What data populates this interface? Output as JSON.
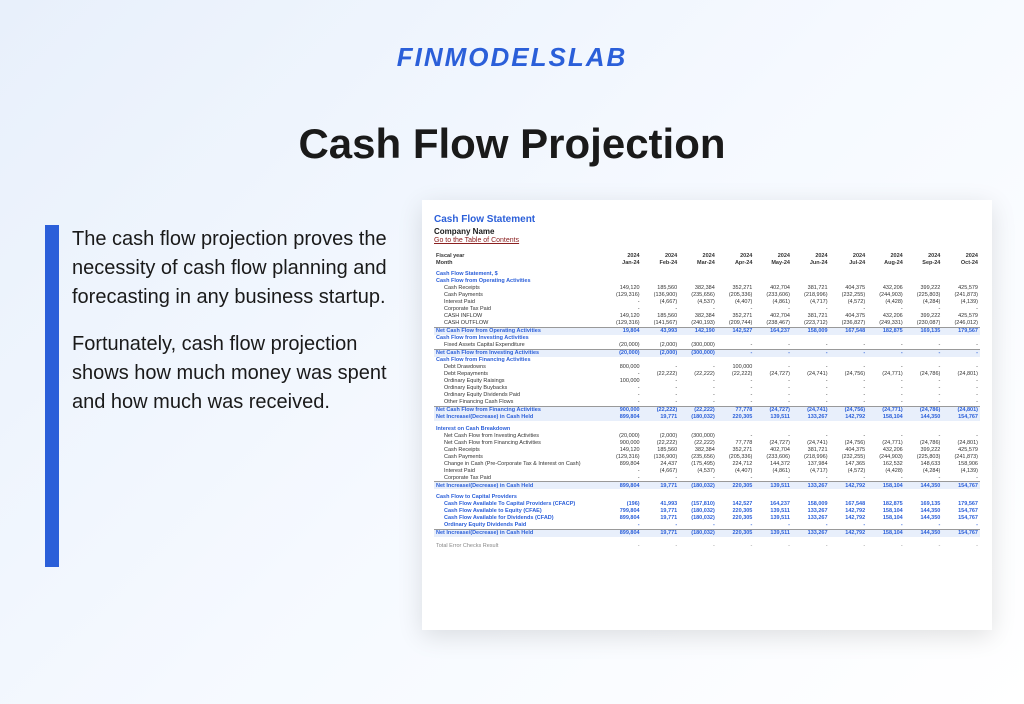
{
  "brand": "FINMODELSLAB",
  "page_title": "Cash Flow Projection",
  "paragraphs": [
    "The cash flow projection proves the necessity of cash flow planning and forecasting in any business startup.",
    "Fortunately, cash flow projection shows how much money was spent and how much was received."
  ],
  "colors": {
    "accent": "#2b5fd9",
    "bg_gradient_start": "#e8f0fb",
    "bg_gradient_end": "#ffffff",
    "text": "#1a1a1a",
    "link": "#8b2020",
    "highlight": "#e8effb"
  },
  "sheet": {
    "title": "Cash Flow Statement",
    "company": "Company Name",
    "link_text": "Go to the Table of Contents",
    "fiscal_label": "Fiscal year",
    "month_label": "Month",
    "years": [
      "2024",
      "2024",
      "2024",
      "2024",
      "2024",
      "2024",
      "2024",
      "2024",
      "2024",
      "2024"
    ],
    "months": [
      "Jan-24",
      "Feb-24",
      "Mar-24",
      "Apr-24",
      "May-24",
      "Jun-24",
      "Jul-24",
      "Aug-24",
      "Sep-24",
      "Oct-24"
    ],
    "section_statement": "Cash Flow Statement, $",
    "operating_header": "Cash Flow from Operating Activities",
    "rows_operating": [
      {
        "label": "Cash Receipts",
        "vals": [
          "149,120",
          "185,560",
          "382,384",
          "352,271",
          "402,704",
          "381,721",
          "404,375",
          "432,206",
          "399,222",
          "425,579"
        ]
      },
      {
        "label": "Cash Payments",
        "vals": [
          "(129,316)",
          "(136,900)",
          "(235,656)",
          "(205,336)",
          "(233,606)",
          "(218,996)",
          "(232,255)",
          "(244,903)",
          "(225,803)",
          "(241,873)"
        ]
      },
      {
        "label": "Interest Paid",
        "vals": [
          "-",
          "(4,667)",
          "(4,537)",
          "(4,407)",
          "(4,861)",
          "(4,717)",
          "(4,572)",
          "(4,428)",
          "(4,284)",
          "(4,139)"
        ]
      },
      {
        "label": "Corporate Tax Paid",
        "vals": [
          "-",
          "-",
          "-",
          "-",
          "-",
          "-",
          "-",
          "-",
          "-",
          "-"
        ]
      },
      {
        "label": "CASH INFLOW",
        "vals": [
          "149,120",
          "185,560",
          "382,384",
          "352,271",
          "402,704",
          "381,721",
          "404,375",
          "432,206",
          "399,222",
          "425,579"
        ]
      },
      {
        "label": "CASH OUTFLOW",
        "vals": [
          "(129,316)",
          "(141,567)",
          "(240,193)",
          "(209,744)",
          "(238,467)",
          "(223,712)",
          "(236,827)",
          "(249,331)",
          "(230,087)",
          "(246,012)"
        ]
      }
    ],
    "net_operating": {
      "label": "Net Cash Flow from Operating Activities",
      "vals": [
        "19,804",
        "43,993",
        "142,190",
        "142,527",
        "164,237",
        "158,009",
        "167,548",
        "182,875",
        "169,135",
        "179,567"
      ]
    },
    "investing_header": "Cash Flow from Investing Activities",
    "rows_investing": [
      {
        "label": "Fixed Assets Capital Expenditure",
        "vals": [
          "(20,000)",
          "(2,000)",
          "(300,000)",
          "-",
          "-",
          "-",
          "-",
          "-",
          "-",
          "-"
        ]
      }
    ],
    "net_investing": {
      "label": "Net Cash Flow from Investing Activities",
      "vals": [
        "(20,000)",
        "(2,000)",
        "(300,000)",
        "-",
        "-",
        "-",
        "-",
        "-",
        "-",
        "-"
      ]
    },
    "financing_header": "Cash Flow from Financing Activities",
    "rows_financing": [
      {
        "label": "Debt Drawdowns",
        "vals": [
          "800,000",
          "-",
          "-",
          "100,000",
          "-",
          "-",
          "-",
          "-",
          "-",
          "-"
        ]
      },
      {
        "label": "Debt Repayments",
        "vals": [
          "-",
          "(22,222)",
          "(22,222)",
          "(22,222)",
          "(24,727)",
          "(24,741)",
          "(24,756)",
          "(24,771)",
          "(24,786)",
          "(24,801)"
        ]
      },
      {
        "label": "Ordinary Equity Raisings",
        "vals": [
          "100,000",
          "-",
          "-",
          "-",
          "-",
          "-",
          "-",
          "-",
          "-",
          "-"
        ]
      },
      {
        "label": "Ordinary Equity Buybacks",
        "vals": [
          "-",
          "-",
          "-",
          "-",
          "-",
          "-",
          "-",
          "-",
          "-",
          "-"
        ]
      },
      {
        "label": "Ordinary Equity Dividends Paid",
        "vals": [
          "-",
          "-",
          "-",
          "-",
          "-",
          "-",
          "-",
          "-",
          "-",
          "-"
        ]
      },
      {
        "label": "Other Financing Cash Flows",
        "vals": [
          "-",
          "-",
          "-",
          "-",
          "-",
          "-",
          "-",
          "-",
          "-",
          "-"
        ]
      }
    ],
    "net_financing": {
      "label": "Net Cash Flow from Financing Activities",
      "vals": [
        "900,000",
        "(22,222)",
        "(22,222)",
        "77,778",
        "(24,727)",
        "(24,741)",
        "(24,756)",
        "(24,771)",
        "(24,786)",
        "(24,801)"
      ]
    },
    "net_increase": {
      "label": "Net Increase/(Decrease) in Cash Held",
      "vals": [
        "899,804",
        "19,771",
        "(180,032)",
        "220,305",
        "139,511",
        "133,267",
        "142,792",
        "158,104",
        "144,350",
        "154,767"
      ]
    },
    "interest_header": "Interest on Cash Breakdown",
    "rows_interest": [
      {
        "label": "Net Cash Flow from Investing Activities",
        "vals": [
          "(20,000)",
          "(2,000)",
          "(300,000)",
          "-",
          "-",
          "-",
          "-",
          "-",
          "-",
          "-"
        ]
      },
      {
        "label": "Net Cash Flow from Financing Activities",
        "vals": [
          "900,000",
          "(22,222)",
          "(22,222)",
          "77,778",
          "(24,727)",
          "(24,741)",
          "(24,756)",
          "(24,771)",
          "(24,786)",
          "(24,801)"
        ]
      },
      {
        "label": "Cash Receipts",
        "vals": [
          "149,120",
          "185,560",
          "382,384",
          "352,271",
          "402,704",
          "381,721",
          "404,375",
          "432,206",
          "399,222",
          "425,579"
        ]
      },
      {
        "label": "Cash Payments",
        "vals": [
          "(129,316)",
          "(136,900)",
          "(235,656)",
          "(205,336)",
          "(233,606)",
          "(218,996)",
          "(232,255)",
          "(244,903)",
          "(225,803)",
          "(241,873)"
        ]
      },
      {
        "label": "Change in Cash (Pre-Corporate Tax & Interest on Cash)",
        "vals": [
          "899,804",
          "24,437",
          "(175,495)",
          "224,712",
          "144,372",
          "137,984",
          "147,365",
          "162,532",
          "148,633",
          "158,906"
        ]
      },
      {
        "label": "Interest Paid",
        "vals": [
          "-",
          "(4,667)",
          "(4,537)",
          "(4,407)",
          "(4,861)",
          "(4,717)",
          "(4,572)",
          "(4,428)",
          "(4,284)",
          "(4,139)"
        ]
      },
      {
        "label": "Corporate Tax Paid",
        "vals": [
          "-",
          "-",
          "-",
          "-",
          "-",
          "-",
          "-",
          "-",
          "-",
          "-"
        ]
      }
    ],
    "net_increase2": {
      "label": "Net Increase/(Decrease) in Cash Held",
      "vals": [
        "899,804",
        "19,771",
        "(180,032)",
        "220,305",
        "139,511",
        "133,267",
        "142,792",
        "158,104",
        "144,350",
        "154,767"
      ]
    },
    "providers_header": "Cash Flow to Capital Providers",
    "rows_providers": [
      {
        "label": "Cash Flow Available To Capital Providers (CFACP)",
        "vals": [
          "(196)",
          "41,993",
          "(157,810)",
          "142,527",
          "164,237",
          "158,009",
          "167,548",
          "182,875",
          "169,135",
          "179,567"
        ]
      },
      {
        "label": "Cash Flow Available to Equity (CFAE)",
        "vals": [
          "799,804",
          "19,771",
          "(180,032)",
          "220,305",
          "139,511",
          "133,267",
          "142,792",
          "158,104",
          "144,350",
          "154,767"
        ]
      },
      {
        "label": "Cash Flow Available for Dividends (CFAD)",
        "vals": [
          "899,804",
          "19,771",
          "(180,032)",
          "220,305",
          "139,511",
          "133,267",
          "142,792",
          "158,104",
          "144,350",
          "154,767"
        ]
      },
      {
        "label": "Ordinary Equity Dividends Paid",
        "vals": [
          "-",
          "-",
          "-",
          "-",
          "-",
          "-",
          "-",
          "-",
          "-",
          "-"
        ]
      }
    ],
    "net_increase3": {
      "label": "Net Increase/(Decrease) in Cash Held",
      "vals": [
        "899,804",
        "19,771",
        "(180,032)",
        "220,305",
        "139,511",
        "133,267",
        "142,792",
        "158,104",
        "144,350",
        "154,767"
      ]
    },
    "error_check": {
      "label": "Total Error Checks Result",
      "vals": [
        "-",
        "-",
        "-",
        "-",
        "-",
        "-",
        "-",
        "-",
        "-",
        "-"
      ]
    }
  }
}
